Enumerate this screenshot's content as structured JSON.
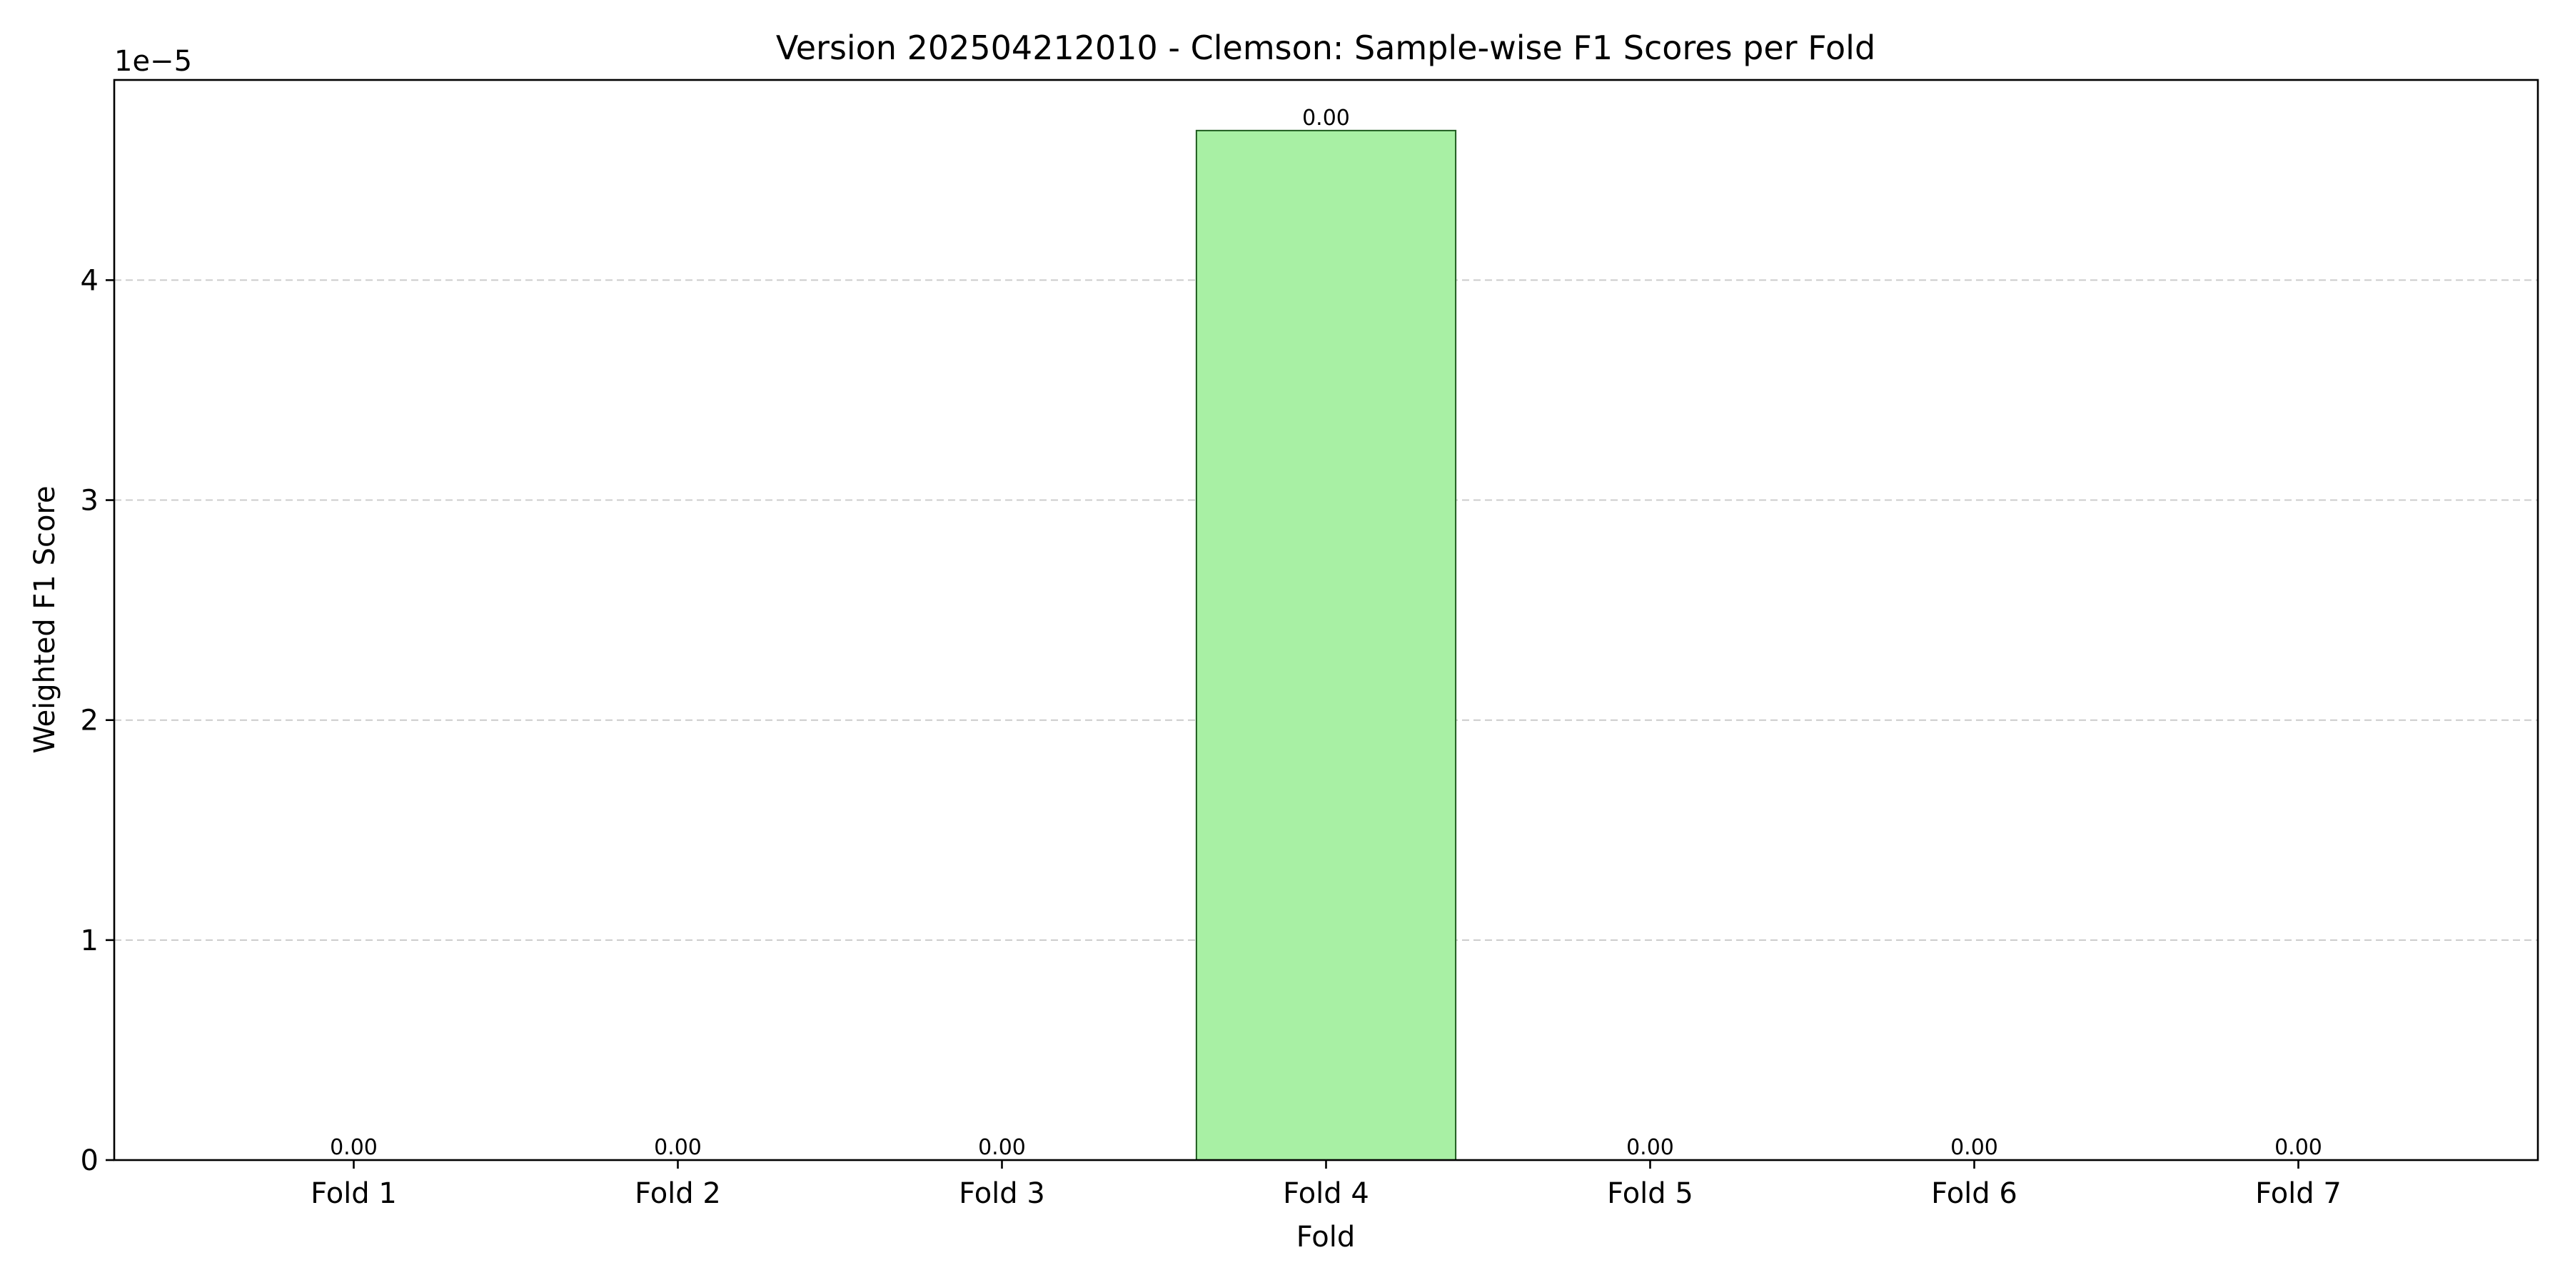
{
  "chart_data": {
    "type": "bar",
    "title": "Version 202504212010 - Clemson: Sample-wise F1 Scores per Fold",
    "xlabel": "Fold",
    "ylabel": "Weighted F1 Score",
    "y_offset_label": "1e−5",
    "categories": [
      "Fold 1",
      "Fold 2",
      "Fold 3",
      "Fold 4",
      "Fold 5",
      "Fold 6",
      "Fold 7"
    ],
    "values": [
      0,
      0,
      0,
      4.68e-05,
      0,
      0,
      0
    ],
    "data_labels": [
      "0.00",
      "0.00",
      "0.00",
      "0.00",
      "0.00",
      "0.00",
      "0.00"
    ],
    "ylim": [
      0,
      4.91e-05
    ],
    "yticks": [
      0,
      1e-05,
      2e-05,
      3e-05,
      4e-05
    ],
    "ytick_labels": [
      "0",
      "1",
      "2",
      "3",
      "4"
    ],
    "grid": "y-dashed",
    "legend": "none",
    "colors": {
      "bar_fill": "#a8f0a4",
      "bar_edge": "#1f5c1f",
      "grid": "#cccccc",
      "axis": "#000000"
    }
  }
}
